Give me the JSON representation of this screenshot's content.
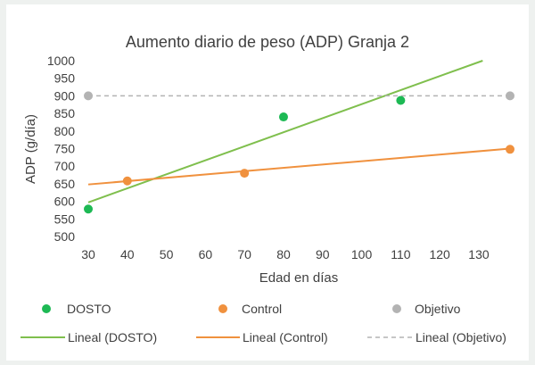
{
  "chart_data": {
    "type": "scatter",
    "title": "Aumento diario de peso (ADP) Granja 2",
    "xlabel": "Edad en días",
    "ylabel": "ADP (g/día)",
    "xlim": [
      30,
      138
    ],
    "ylim": [
      500,
      1000
    ],
    "xticks": [
      30,
      40,
      50,
      60,
      70,
      80,
      90,
      100,
      110,
      120,
      130
    ],
    "yticks": [
      500,
      550,
      600,
      650,
      700,
      750,
      800,
      850,
      900,
      950,
      1000
    ],
    "grid": false,
    "legend_position": "bottom",
    "series": [
      {
        "name": "DOSTO",
        "kind": "points",
        "color": "#1db954",
        "x": [
          30,
          80,
          110
        ],
        "y": [
          578,
          840,
          887
        ]
      },
      {
        "name": "Control",
        "kind": "points",
        "color": "#f0913e",
        "x": [
          40,
          70,
          138
        ],
        "y": [
          658,
          680,
          748
        ]
      },
      {
        "name": "Objetivo",
        "kind": "points",
        "color": "#b3b3b3",
        "x": [
          30,
          138
        ],
        "y": [
          900,
          900
        ]
      }
    ],
    "trendlines": [
      {
        "name": "Lineal (DOSTO)",
        "color": "#7fbf4d",
        "style": "solid",
        "x": [
          30,
          131
        ],
        "y": [
          597,
          1000
        ]
      },
      {
        "name": "Lineal (Control)",
        "color": "#f0913e",
        "style": "solid",
        "x": [
          30,
          138
        ],
        "y": [
          648,
          750
        ]
      },
      {
        "name": "Lineal (Objetivo)",
        "color": "#b3b3b3",
        "style": "dashed",
        "x": [
          30,
          138
        ],
        "y": [
          900,
          900
        ]
      }
    ]
  }
}
